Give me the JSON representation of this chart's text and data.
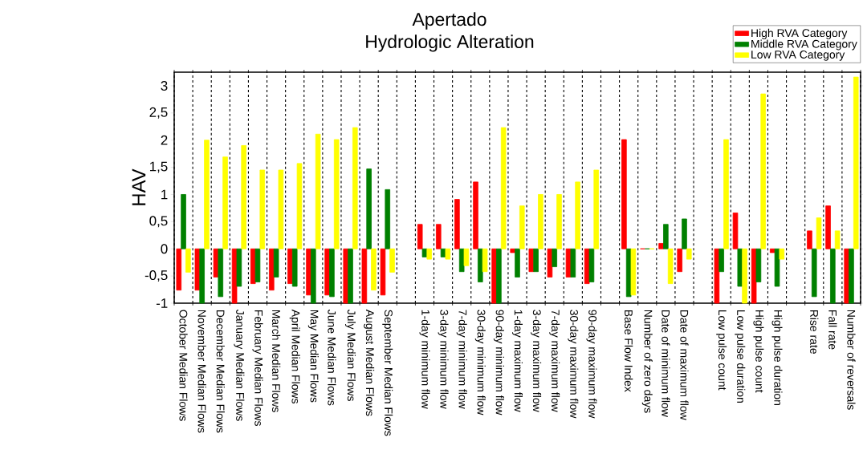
{
  "chart_data": {
    "type": "bar",
    "title": "Apertado",
    "subtitle": "Hydrologic Alteration",
    "ylabel": "HAV",
    "categories": [
      "October Median Flows",
      "November Median Flows",
      "December Median Flows",
      "January Median Flows",
      "February Median Flows",
      "March Median Flows",
      "April Median Flows",
      "May Median Flows",
      "June Median Flows",
      "July Median Flows",
      "August Median Flows",
      "September Median Flows",
      null,
      "1-day minimum flow",
      "3-day minimum flow",
      "7-day minimum flow",
      "30-day minimum flow",
      "90-day minimum flow",
      "1-day maximum flow",
      "3-day maximum flow",
      "7-day maximum flow",
      "30-day maximum flow",
      "90-day maximum flow",
      null,
      "Base Flow Index",
      "Number of zero days",
      "Date of minimum flow",
      "Date of maximum flow",
      null,
      "Low pulse count",
      "Low pulse duration",
      "High pulse count",
      "High pulse duration",
      null,
      "Rise rate",
      "Fall rate",
      "Number of reversals"
    ],
    "series": [
      {
        "name": "High RVA Category",
        "color": "#ff0000",
        "values": [
          -0.76,
          -0.76,
          -0.52,
          -1,
          -0.64,
          -0.76,
          -0.64,
          -0.85,
          -0.85,
          -1,
          -1,
          -0.85,
          null,
          0.45,
          0.45,
          0.91,
          1.23,
          -1,
          -0.07,
          -0.42,
          -0.52,
          -0.52,
          -0.64,
          null,
          2.01,
          0,
          0.1,
          -0.42,
          null,
          -1,
          0.66,
          -1,
          -0.07,
          null,
          0.33,
          0.79,
          -1
        ]
      },
      {
        "name": "Middle RVA Category",
        "color": "#008000",
        "values": [
          1.0,
          -1,
          -0.88,
          -0.69,
          -0.61,
          -0.52,
          -0.69,
          -1,
          -0.88,
          -1,
          1.47,
          1.09,
          null,
          -0.15,
          -0.15,
          -0.42,
          -0.61,
          -1,
          -0.52,
          -0.42,
          -0.33,
          -0.52,
          -0.61,
          null,
          -0.88,
          0,
          0.45,
          0.55,
          null,
          -0.42,
          -0.69,
          -0.61,
          -0.69,
          null,
          -0.88,
          -1,
          -1
        ]
      },
      {
        "name": "Low RVA Category",
        "color": "#ffff00",
        "values": [
          -0.43,
          2.0,
          1.69,
          1.9,
          1.45,
          1.45,
          1.57,
          2.11,
          2.01,
          2.23,
          -0.76,
          -0.43,
          null,
          -0.19,
          -0.19,
          -0.31,
          -0.42,
          2.23,
          0.79,
          1.0,
          1.0,
          1.23,
          1.45,
          null,
          -0.85,
          0,
          -0.64,
          -0.19,
          null,
          2.01,
          -1,
          2.85,
          -0.19,
          null,
          0.57,
          0.33,
          3.16
        ]
      }
    ],
    "ylim": [
      -1,
      3.25
    ],
    "yticks": [
      -1,
      {
        "value": -0.5,
        "label": "-0,5"
      },
      0,
      {
        "value": 0.5,
        "label": "0,5"
      },
      1,
      {
        "value": 1.5,
        "label": "1,5"
      },
      2,
      {
        "value": 2.5,
        "label": "2,5"
      },
      3
    ],
    "grid": "x",
    "legend": "top right"
  }
}
